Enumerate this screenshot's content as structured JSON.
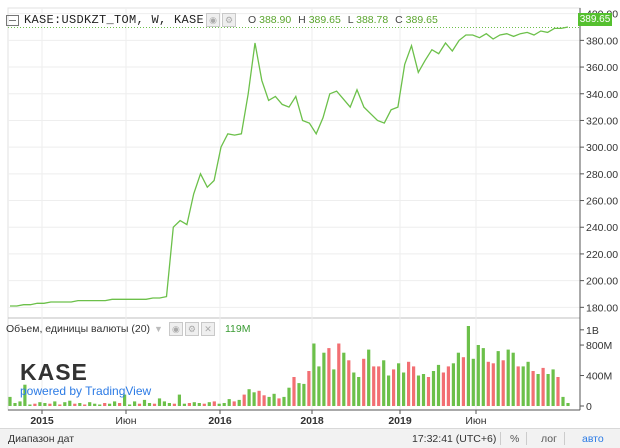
{
  "header": {
    "symbol": "KASE:USDKZT_TOM, W, KASE",
    "o_key": "O",
    "o_val": "388.90",
    "h_key": "H",
    "h_val": "389.65",
    "l_key": "L",
    "l_val": "388.78",
    "c_key": "C",
    "c_val": "389.65"
  },
  "last_price": "389.65",
  "volume_header": {
    "title": "Объем, единицы валюты (20)",
    "value": "119M"
  },
  "logo": {
    "name": "KASE",
    "powered": "powered by TradingView"
  },
  "footer": {
    "range": "Диапазон дат",
    "time": "17:32:41",
    "tz": "(UTC+6)",
    "pct": "%",
    "log": "лог",
    "auto": "авто"
  },
  "colors": {
    "up": "#6cc04a",
    "down": "#f26f73",
    "line": "#6cc04a",
    "last_label": "#55c02f"
  },
  "chart_data": [
    {
      "type": "line",
      "title": "KASE:USDKZT_TOM, W, KASE",
      "ylim": [
        172,
        402
      ],
      "y_ticks": [
        180,
        200,
        220,
        240,
        260,
        280,
        300,
        320,
        340,
        360,
        380,
        400
      ],
      "x_tick_labels": [
        "2015",
        "Июн",
        "2016",
        "2018",
        "2019",
        "Июн"
      ],
      "series": [
        {
          "values": [
            181,
            181,
            182,
            182,
            183,
            183,
            184,
            184,
            184,
            184,
            185,
            185,
            185,
            185,
            185,
            186,
            186,
            186,
            186,
            186,
            186,
            187,
            187,
            188,
            240,
            245,
            242,
            265,
            280,
            270,
            275,
            300,
            310,
            309,
            310,
            340,
            378,
            350,
            335,
            338,
            332,
            330,
            338,
            320,
            318,
            310,
            322,
            340,
            342,
            336,
            330,
            343,
            330,
            325,
            320,
            318,
            328,
            330,
            362,
            376,
            356,
            365,
            373,
            370,
            378,
            372,
            380,
            384,
            384,
            382,
            385,
            381,
            384,
            385,
            383,
            385,
            386,
            384,
            387,
            386,
            389,
            389,
            390
          ]
        }
      ]
    },
    {
      "type": "bar",
      "title": "Объем, единицы валюты (20)",
      "ylim": [
        0,
        1050
      ],
      "y_ticks": [
        "0",
        "400M",
        "800M",
        "1B"
      ],
      "volumes": [
        120,
        40,
        60,
        280,
        20,
        30,
        50,
        40,
        30,
        60,
        20,
        50,
        70,
        30,
        40,
        20,
        50,
        30,
        20,
        40,
        30,
        60,
        40,
        150,
        20,
        60,
        30,
        80,
        40,
        30,
        100,
        60,
        40,
        30,
        150,
        30,
        40,
        50,
        40,
        30,
        50,
        60,
        30,
        40,
        90,
        60,
        80,
        150,
        220,
        180,
        200,
        140,
        120,
        160,
        100,
        120,
        240,
        380,
        300,
        290,
        460,
        820,
        520,
        700,
        760,
        480,
        820,
        700,
        600,
        440,
        380,
        620,
        740,
        520,
        520,
        600,
        400,
        480,
        560,
        440,
        580,
        520,
        400,
        420,
        380,
        460,
        540,
        440,
        520,
        560,
        700,
        640,
        1050,
        620,
        800,
        760,
        580,
        560,
        720,
        600,
        740,
        700,
        520,
        520,
        580,
        460,
        420,
        500,
        420,
        480,
        380,
        120,
        40
      ],
      "up": [
        true,
        true,
        true,
        true,
        true,
        false,
        true,
        true,
        false,
        true,
        false,
        true,
        true,
        false,
        true,
        false,
        true,
        true,
        true,
        false,
        true,
        true,
        false,
        true,
        true,
        true,
        false,
        true,
        true,
        false,
        true,
        true,
        true,
        false,
        true,
        true,
        false,
        true,
        true,
        false,
        true,
        false,
        true,
        true,
        true,
        false,
        true,
        false,
        true,
        true,
        false,
        false,
        true,
        true,
        false,
        true,
        true,
        false,
        true,
        true,
        false,
        true,
        true,
        true,
        false,
        true,
        false,
        true,
        false,
        true,
        true,
        false,
        true,
        false,
        false,
        true,
        true,
        false,
        true,
        true,
        false,
        false,
        true,
        true,
        false,
        true,
        true,
        false,
        false,
        true,
        true,
        false,
        true,
        true,
        true,
        true,
        false,
        false,
        true,
        false,
        true,
        true,
        false,
        true,
        true,
        false,
        true,
        false,
        true,
        true,
        false,
        true,
        true
      ]
    }
  ]
}
